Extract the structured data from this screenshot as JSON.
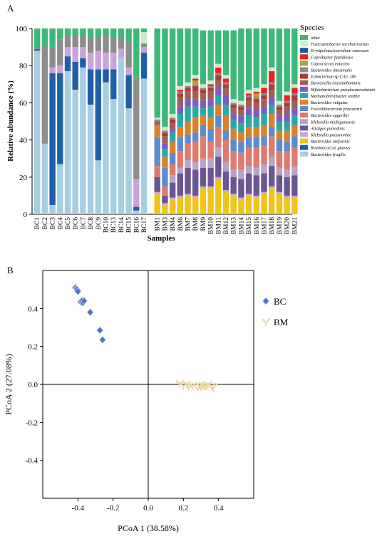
{
  "panels": {
    "a": "A",
    "b": "B"
  },
  "chart_data": [
    {
      "type": "bar",
      "stacked": true,
      "xlabel": "Samples",
      "ylabel": "Relative abundance (%)",
      "ylim": [
        0,
        100
      ],
      "yticks": [
        0,
        20,
        40,
        60,
        80,
        100
      ],
      "legend_title": "Species",
      "legend_position": "right",
      "categories": [
        "BC1",
        "BC2",
        "BC3",
        "BC4",
        "BC5",
        "BC6",
        "BC7",
        "BC8",
        "BC9",
        "BC10",
        "BC13",
        "BC14",
        "BC15",
        "BC16",
        "BC17",
        "BM1",
        "BM3",
        "BM4",
        "BM6",
        "BM7",
        "BM8",
        "BM9",
        "BM10",
        "BM11",
        "BM12",
        "BM13",
        "BM14",
        "BM15",
        "BM16",
        "BM17",
        "BM18",
        "BM19",
        "BM20",
        "BM21"
      ],
      "species": [
        {
          "name": "Bacteroides fragilis",
          "color": "#a6cee3"
        },
        {
          "name": "Ruminococcus gnavus",
          "color": "#1f5fa8"
        },
        {
          "name": "Bacteroides uniformis",
          "color": "#f0c419"
        },
        {
          "name": "Klebsiella pneumoniae",
          "color": "#c9a4dc"
        },
        {
          "name": "Alistipes putredinis",
          "color": "#6a5596"
        },
        {
          "name": "Klebsiella michiganensis",
          "color": "#b7a4c8"
        },
        {
          "name": "Bacteroides eggerthii",
          "color": "#e07a6c"
        },
        {
          "name": "Faecalibacterium prausnitzii",
          "color": "#5b8bd0"
        },
        {
          "name": "Bacteroides vulgatus",
          "color": "#d9822b"
        },
        {
          "name": "Methanobrevibacter smithii",
          "color": "#2aa8a8"
        },
        {
          "name": "Bifidobacterium pseudocatenulatum",
          "color": "#7c5cc4"
        },
        {
          "name": "Barnesiella intestinihominis",
          "color": "#a0605a"
        },
        {
          "name": "Eubacterium sp CAG 180",
          "color": "#b03a3a"
        },
        {
          "name": "Bacteroides intestinalis",
          "color": "#8c8c8c"
        },
        {
          "name": "Coprococcus eutactus",
          "color": "#b8a028"
        },
        {
          "name": "Coprobacter fastidiosus",
          "color": "#e8231f"
        },
        {
          "name": "Erysipelatoclostridium ramosum",
          "color": "#1e5aa0"
        },
        {
          "name": "Fusicatenibacter saccharivorans",
          "color": "#cdebc4"
        },
        {
          "name": "other",
          "color": "#3cb878"
        }
      ],
      "values": [
        [
          88,
          0,
          0,
          0,
          1,
          0,
          0,
          0,
          0,
          0,
          0,
          0,
          0,
          0,
          0,
          0,
          0,
          0,
          11
        ],
        [
          38,
          0,
          0,
          0,
          0,
          0,
          0,
          0,
          0,
          0,
          0,
          0,
          0,
          53,
          0,
          0,
          0,
          0,
          9
        ],
        [
          5,
          71,
          0,
          3,
          0,
          0,
          0,
          0,
          0,
          0,
          0,
          0,
          0,
          11,
          0,
          0,
          0,
          0,
          10
        ],
        [
          27,
          49,
          0,
          4,
          0,
          0,
          0,
          0,
          0,
          0,
          0,
          0,
          0,
          14,
          0,
          0,
          0,
          0,
          6
        ],
        [
          77,
          8,
          0,
          5,
          0,
          0,
          0,
          0,
          0,
          0,
          0,
          0,
          0,
          6,
          0,
          0,
          0,
          0,
          4
        ],
        [
          67,
          15,
          0,
          8,
          0,
          0,
          0,
          0,
          0,
          0,
          0,
          0,
          0,
          6,
          0,
          0,
          0,
          0,
          4
        ],
        [
          79,
          5,
          0,
          6,
          0,
          0,
          0,
          0,
          0,
          0,
          0,
          0,
          0,
          6,
          0,
          0,
          0,
          0,
          4
        ],
        [
          59,
          19,
          0,
          9,
          0,
          0,
          0,
          0,
          0,
          0,
          0,
          0,
          0,
          8,
          0,
          0,
          0,
          0,
          5
        ],
        [
          29,
          49,
          0,
          10,
          0,
          0,
          0,
          0,
          0,
          0,
          0,
          0,
          0,
          7,
          0,
          0,
          0,
          0,
          5
        ],
        [
          71,
          7,
          0,
          9,
          0,
          0,
          0,
          0,
          0,
          0,
          0,
          0,
          0,
          9,
          0,
          0,
          0,
          0,
          4
        ],
        [
          62,
          16,
          0,
          9,
          0,
          0,
          0,
          0,
          0,
          0,
          0,
          0,
          0,
          8,
          0,
          0,
          0,
          0,
          5
        ],
        [
          84,
          0,
          0,
          5,
          0,
          0,
          0,
          0,
          0,
          0,
          0,
          0,
          0,
          6,
          0,
          0,
          0,
          0,
          5
        ],
        [
          57,
          18,
          0,
          4,
          0,
          0,
          0,
          0,
          0,
          0,
          0,
          0,
          0,
          14,
          0,
          0,
          0,
          0,
          7
        ],
        [
          2,
          2,
          0,
          15,
          0,
          0,
          0,
          0,
          0,
          0,
          0,
          0,
          0,
          55,
          0,
          0,
          0,
          0,
          26
        ],
        [
          73,
          14,
          0,
          3,
          0,
          0,
          0,
          0,
          0,
          0,
          0,
          0,
          0,
          2,
          0,
          0,
          0,
          6,
          2
        ],
        [
          0,
          0,
          11,
          1,
          8,
          0,
          6,
          15,
          7,
          0,
          0,
          2,
          0,
          1,
          0,
          0,
          0,
          1,
          48
        ],
        [
          0,
          0,
          5,
          1,
          4,
          0,
          5,
          10,
          6,
          4,
          3,
          4,
          2,
          1,
          0,
          0,
          0,
          2,
          53
        ],
        [
          0,
          0,
          8,
          1,
          8,
          4,
          6,
          6,
          6,
          5,
          2,
          3,
          2,
          1,
          0,
          0,
          0,
          2,
          46
        ],
        [
          0,
          0,
          9,
          1,
          12,
          3,
          9,
          7,
          6,
          7,
          4,
          5,
          2,
          1,
          0,
          1,
          0,
          2,
          31
        ],
        [
          0,
          0,
          10,
          1,
          14,
          4,
          9,
          5,
          7,
          8,
          4,
          4,
          2,
          1,
          0,
          0,
          0,
          2,
          29
        ],
        [
          0,
          0,
          9,
          1,
          14,
          4,
          11,
          5,
          8,
          6,
          4,
          4,
          3,
          1,
          2,
          1,
          0,
          2,
          25
        ],
        [
          0,
          0,
          14,
          1,
          10,
          5,
          12,
          6,
          5,
          4,
          4,
          4,
          2,
          1,
          0,
          0,
          0,
          2,
          29
        ],
        [
          0,
          0,
          14,
          1,
          10,
          5,
          9,
          7,
          6,
          6,
          4,
          4,
          2,
          1,
          0,
          1,
          0,
          2,
          27
        ],
        [
          0,
          0,
          19,
          1,
          11,
          5,
          11,
          6,
          6,
          5,
          4,
          4,
          3,
          1,
          0,
          3,
          0,
          2,
          18
        ],
        [
          0,
          0,
          12,
          1,
          10,
          5,
          12,
          5,
          8,
          6,
          5,
          4,
          2,
          1,
          0,
          2,
          0,
          2,
          24
        ],
        [
          0,
          0,
          10,
          1,
          9,
          4,
          10,
          6,
          6,
          5,
          3,
          3,
          2,
          1,
          0,
          0,
          0,
          2,
          37
        ],
        [
          0,
          0,
          8,
          1,
          10,
          5,
          9,
          6,
          5,
          5,
          4,
          3,
          2,
          1,
          0,
          0,
          0,
          2,
          39
        ],
        [
          0,
          0,
          10,
          1,
          11,
          4,
          10,
          5,
          6,
          6,
          4,
          4,
          2,
          1,
          0,
          1,
          0,
          2,
          33
        ],
        [
          0,
          0,
          9,
          1,
          11,
          4,
          11,
          5,
          6,
          5,
          4,
          4,
          2,
          1,
          2,
          1,
          0,
          2,
          32
        ],
        [
          0,
          0,
          11,
          1,
          10,
          5,
          10,
          5,
          6,
          6,
          4,
          4,
          2,
          1,
          0,
          3,
          0,
          2,
          30
        ],
        [
          0,
          0,
          14,
          1,
          11,
          5,
          11,
          5,
          7,
          5,
          4,
          4,
          3,
          1,
          0,
          6,
          0,
          2,
          21
        ],
        [
          0,
          0,
          11,
          1,
          9,
          4,
          9,
          6,
          5,
          5,
          3,
          3,
          2,
          1,
          0,
          0,
          0,
          2,
          39
        ],
        [
          0,
          0,
          9,
          1,
          10,
          4,
          10,
          5,
          6,
          5,
          4,
          4,
          2,
          1,
          0,
          3,
          0,
          2,
          34
        ],
        [
          0,
          0,
          9,
          1,
          11,
          5,
          10,
          6,
          6,
          5,
          4,
          4,
          3,
          1,
          0,
          3,
          0,
          2,
          30
        ],
        [
          0,
          0,
          12,
          1,
          10,
          4,
          10,
          5,
          6,
          5,
          4,
          4,
          2,
          1,
          0,
          3,
          0,
          2,
          32
        ]
      ]
    },
    {
      "type": "scatter",
      "xlabel": "PCoA 1 (38.58%)",
      "ylabel": "PCoA 2 (27.08%)",
      "xlim": [
        -0.6,
        0.6
      ],
      "ylim": [
        -0.6,
        0.6
      ],
      "xticks": [
        -0.4,
        -0.2,
        0.0,
        0.2,
        0.4
      ],
      "xtick_labels": [
        "-0.4",
        "-0.2",
        "0.0",
        "0.2",
        "0.4"
      ],
      "yticks": [
        -0.4,
        -0.2,
        0.0,
        0.2,
        0.4
      ],
      "yticks_labels": [
        "-0.4",
        "-0.2",
        "0.0",
        "0.2",
        "0.4"
      ],
      "legend_position": "right",
      "reference_lines": {
        "x": 0,
        "y": 0
      },
      "series": [
        {
          "name": "BC",
          "color": "#4a74c4",
          "marker": "diamond",
          "x": [
            -0.415,
            -0.41,
            -0.405,
            -0.4,
            -0.385,
            -0.378,
            -0.372,
            -0.365,
            -0.33,
            -0.275,
            -0.26
          ],
          "y": [
            0.51,
            0.505,
            0.5,
            0.49,
            0.435,
            0.44,
            0.43,
            0.44,
            0.38,
            0.285,
            0.235
          ]
        },
        {
          "name": "BM",
          "color": "#ecd8a0",
          "marker": "chevron",
          "x": [
            0.18,
            0.2,
            0.22,
            0.23,
            0.25,
            0.28,
            0.29,
            0.3,
            0.31,
            0.32,
            0.33,
            0.34,
            0.36,
            0.37
          ],
          "y": [
            0.005,
            -0.005,
            0.0,
            -0.01,
            -0.008,
            -0.015,
            -0.005,
            -0.012,
            -0.005,
            -0.01,
            -0.008,
            0.0,
            -0.01,
            -0.015
          ]
        }
      ]
    }
  ]
}
